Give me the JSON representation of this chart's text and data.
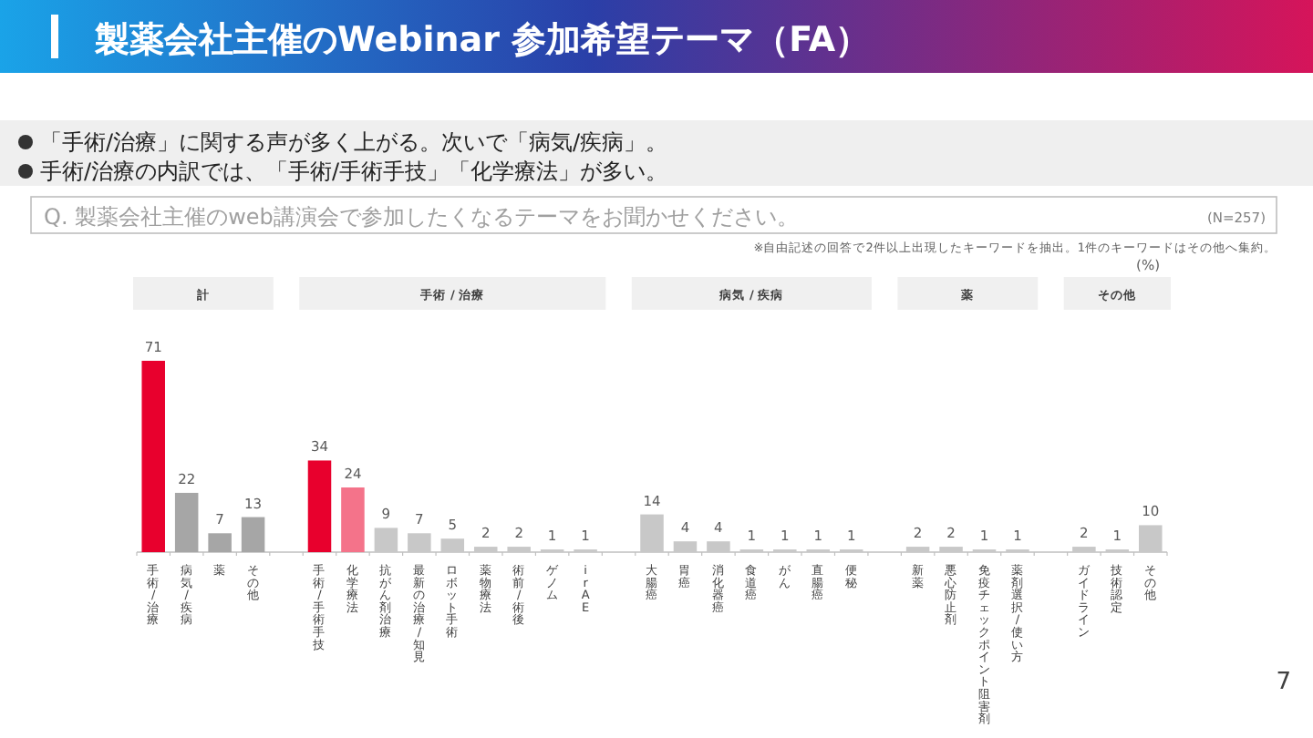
{
  "chart_data": {
    "type": "bar",
    "title": "製薬会社主催のWebinar 参加希望テーマ（FA）",
    "annotations": [
      "「手術/治療」に関する声が多く上がる。次いで「病気/疾病」。",
      "手術/治療の内訳では、「手術/手術手技」「化学療法」が多い。",
      "Q. 製薬会社主催のweb講演会で参加したくなるテーマをお聞かせください。",
      "(N=257)",
      "※自由記述の回答で2件以上出現したキーワードを抽出。1件のキーワードはその他へ集約。",
      "(%)",
      "7",
      "計",
      "手術 / 治療",
      "病気 / 疾病",
      "薬",
      "その他"
    ],
    "categories": [
      "手術/治療",
      "病気/疾病",
      "薬",
      "その他",
      null,
      "手術/手術手技",
      "化学療法",
      "抗がん剤治療",
      "最新の治療/知見",
      "ロボット手術",
      "薬物療法",
      "術前/術後",
      "ゲノム",
      "irAE",
      null,
      "大腸癌",
      "胃癌",
      "消化器癌",
      "食道癌",
      "がん",
      "直腸癌",
      "便秘",
      null,
      "新薬",
      "悪心防止剤",
      "免疫チェックポイント阻害剤",
      "薬剤選択/使い方",
      null,
      "ガイドライン",
      "技術認定",
      "その他"
    ],
    "values": [
      71,
      22,
      7,
      13,
      null,
      34,
      24,
      9,
      7,
      5,
      2,
      2,
      1,
      1,
      null,
      14,
      4,
      4,
      1,
      1,
      1,
      1,
      null,
      2,
      2,
      1,
      1,
      null,
      2,
      1,
      10
    ],
    "colors": [
      "#e8002d",
      "#a6a6a6",
      "#a6a6a6",
      "#a6a6a6",
      null,
      "#e8002d",
      "#f4738a",
      "#c8c8c8",
      "#c8c8c8",
      "#c8c8c8",
      "#c8c8c8",
      "#c8c8c8",
      "#c8c8c8",
      "#c8c8c8",
      null,
      "#c8c8c8",
      "#c8c8c8",
      "#c8c8c8",
      "#c8c8c8",
      "#c8c8c8",
      "#c8c8c8",
      "#c8c8c8",
      null,
      "#c8c8c8",
      "#c8c8c8",
      "#c8c8c8",
      "#c8c8c8",
      null,
      "#c8c8c8",
      "#c8c8c8",
      "#c8c8c8"
    ],
    "data_labels": true
  }
}
